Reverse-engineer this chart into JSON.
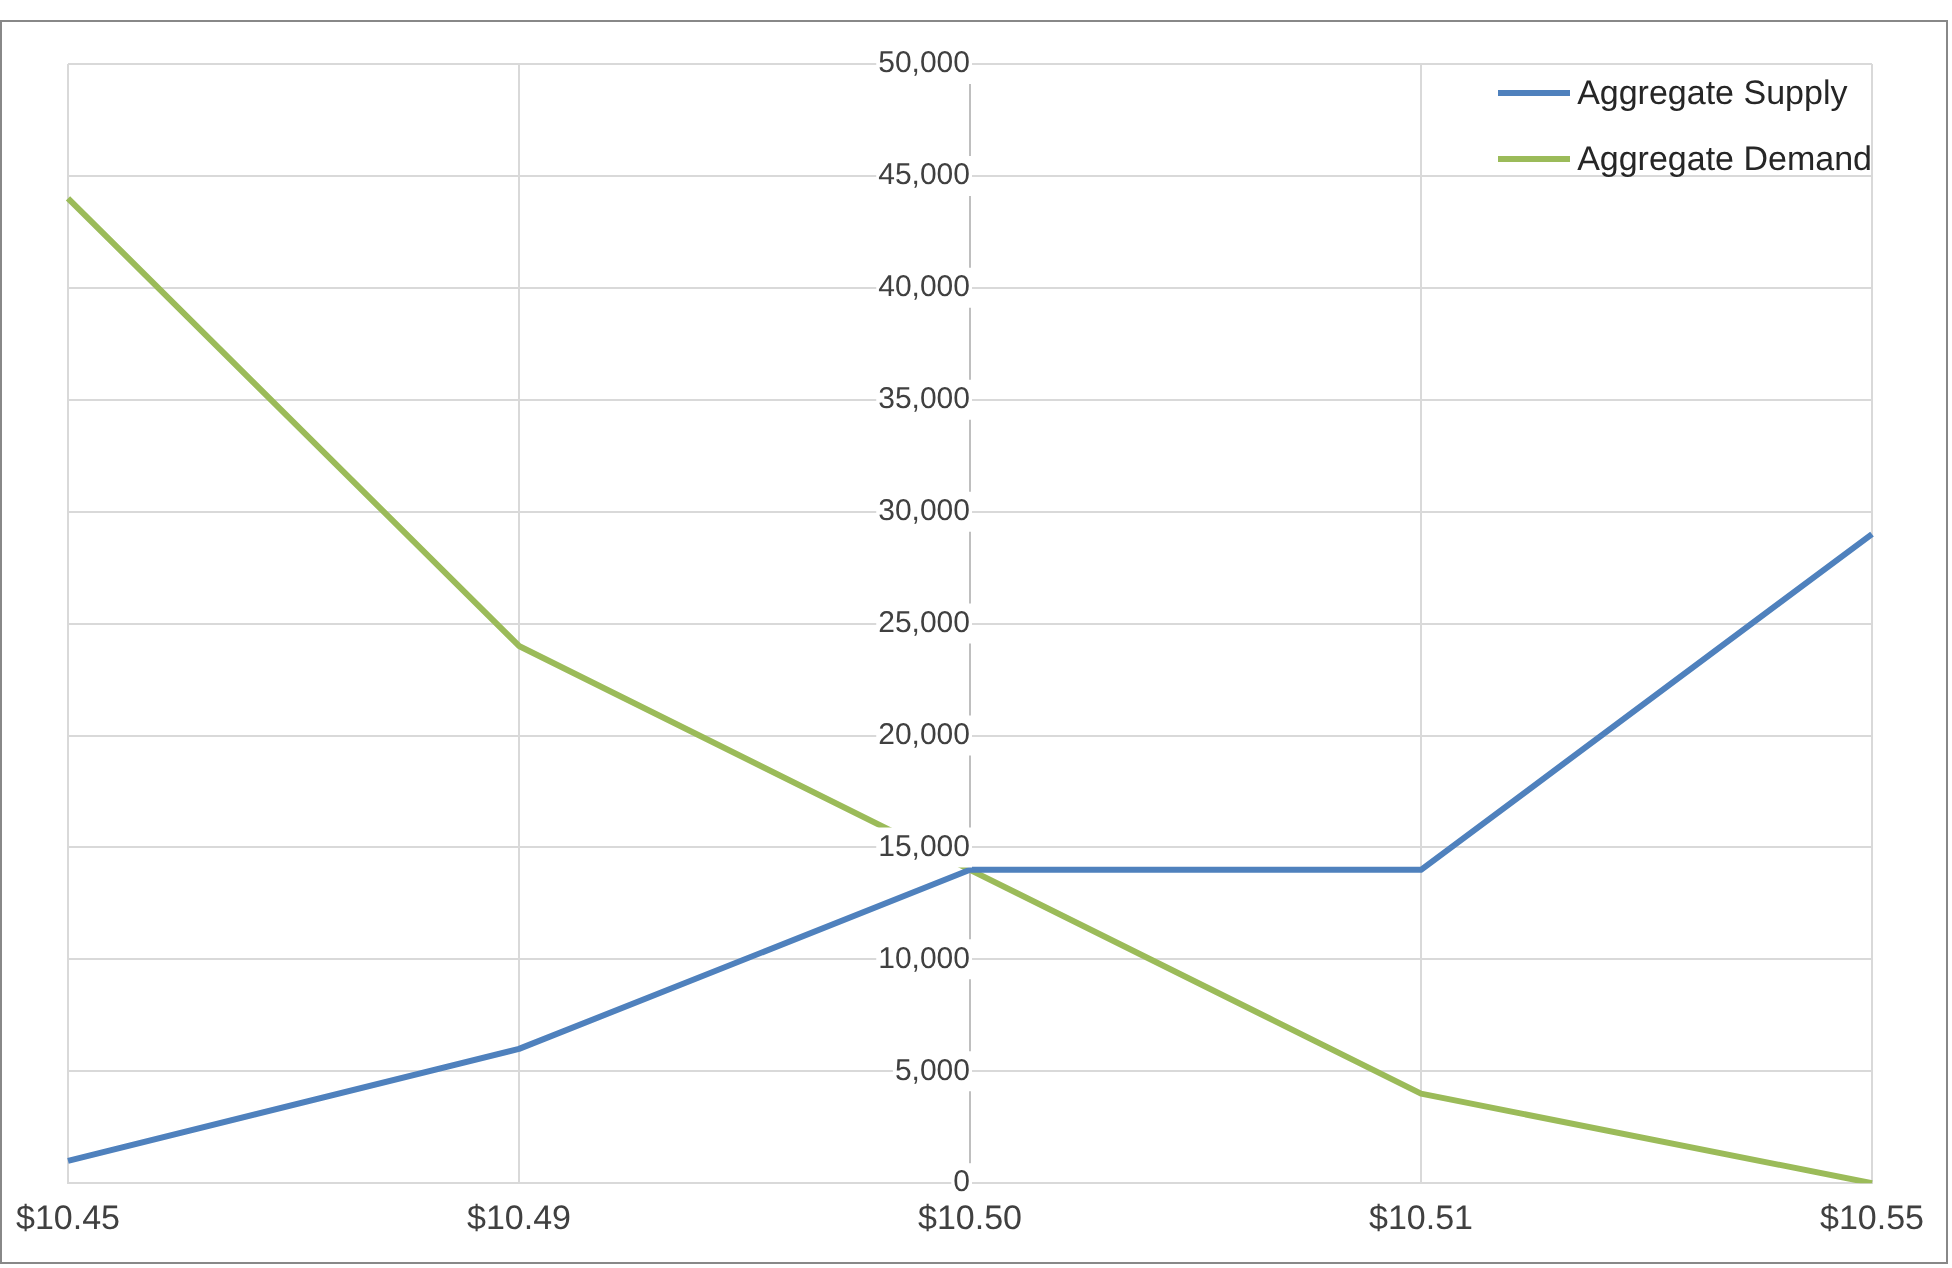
{
  "chart_data": {
    "type": "line",
    "categories": [
      "$10.45",
      "$10.49",
      "$10.50",
      "$10.51",
      "$10.55"
    ],
    "series": [
      {
        "name": "Aggregate Supply",
        "color": "#4f81bd",
        "values": [
          1000,
          6000,
          14000,
          14000,
          29000
        ]
      },
      {
        "name": "Aggregate Demand",
        "color": "#9bbb59",
        "values": [
          44000,
          24000,
          14000,
          4000,
          0
        ]
      }
    ],
    "ylim": [
      0,
      50000
    ],
    "yticks": [
      {
        "value": 0,
        "label": "0"
      },
      {
        "value": 5000,
        "label": "5,000"
      },
      {
        "value": 10000,
        "label": "10,000"
      },
      {
        "value": 15000,
        "label": "15,000"
      },
      {
        "value": 20000,
        "label": "20,000"
      },
      {
        "value": 25000,
        "label": "25,000"
      },
      {
        "value": 30000,
        "label": "30,000"
      },
      {
        "value": 35000,
        "label": "35,000"
      },
      {
        "value": 40000,
        "label": "40,000"
      },
      {
        "value": 45000,
        "label": "45,000"
      },
      {
        "value": 50000,
        "label": "50,000"
      }
    ],
    "grid": true,
    "legend": "top right",
    "marker": "none",
    "line_style": "solid"
  }
}
